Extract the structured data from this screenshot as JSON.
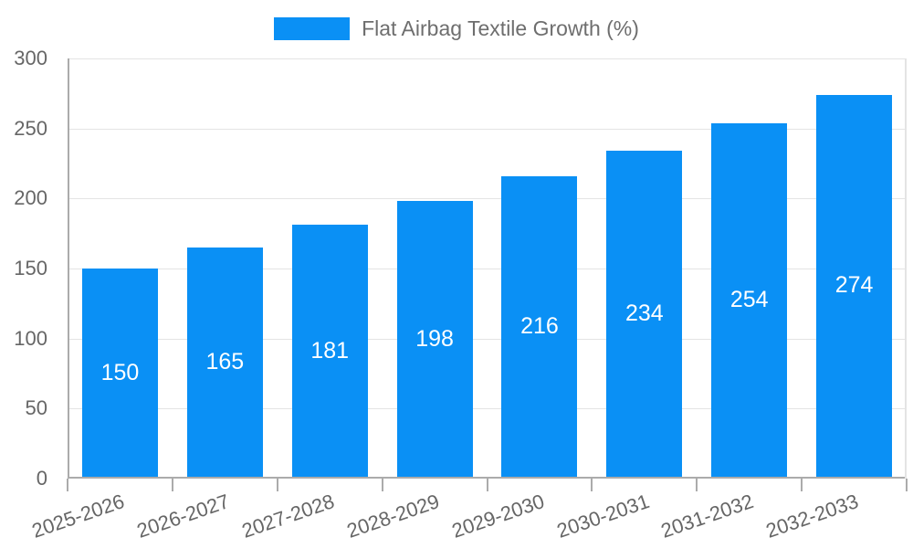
{
  "chart_data": {
    "type": "bar",
    "categories": [
      "2025-2026",
      "2026-2027",
      "2027-2028",
      "2028-2029",
      "2029-2030",
      "2030-2031",
      "2031-2032",
      "2032-2033"
    ],
    "series": [
      {
        "name": "Flat Airbag Textile Growth (%)",
        "values": [
          150,
          165,
          181,
          198,
          216,
          234,
          254,
          274
        ]
      }
    ],
    "title": "",
    "xlabel": "",
    "ylabel": "",
    "ylim": [
      0,
      300
    ],
    "yticks": [
      0,
      50,
      100,
      150,
      200,
      250,
      300
    ],
    "grid": true,
    "legend_position": "top",
    "bar_value_labels": true
  },
  "colors": {
    "bar": "#0a90f5",
    "bar_label": "#ffffff",
    "axis_text": "#666666",
    "legend_text": "#6e6e6e",
    "gridline": "#e4e4e4",
    "axis_line": "#ababab",
    "background": "#ffffff"
  }
}
